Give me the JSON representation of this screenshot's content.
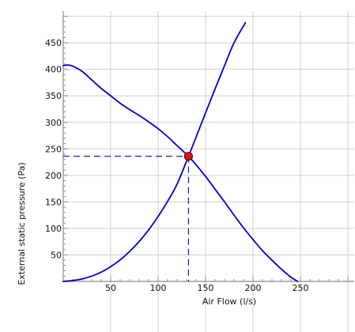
{
  "chart_data": {
    "type": "line",
    "title": "",
    "xlabel": "Air Flow (l/s)",
    "ylabel": "External static pressure (Pa)",
    "xlim": [
      0,
      310
    ],
    "ylim": [
      0,
      505
    ],
    "x_ticks": [
      50,
      100,
      150,
      200,
      250
    ],
    "y_ticks": [
      50,
      100,
      150,
      200,
      250,
      300,
      350,
      400,
      450
    ],
    "x_grid": [
      50,
      100,
      150,
      200,
      250,
      300
    ],
    "y_grid": [
      50,
      100,
      150,
      200,
      250,
      300,
      350,
      400,
      450,
      500
    ],
    "grid": true,
    "legend": "none",
    "colors": {
      "curve": "#0000cc",
      "guide": "#0000cc",
      "point_fill": "#dd1111",
      "point_stroke": "#660000"
    },
    "series": [
      {
        "x": [
          0,
          5,
          10,
          20,
          30,
          40,
          50,
          60,
          70,
          80,
          90,
          100,
          110,
          120,
          132,
          140,
          150,
          160,
          170,
          180,
          190,
          200,
          210,
          220,
          230,
          240,
          247
        ],
        "y": [
          407,
          408,
          406,
          396,
          380,
          364,
          350,
          336,
          324,
          313,
          301,
          288,
          273,
          256,
          236,
          220,
          198,
          174,
          150,
          125,
          101,
          79,
          58,
          40,
          23,
          8,
          0
        ]
      },
      {
        "x": [
          0,
          10,
          20,
          30,
          40,
          50,
          60,
          70,
          80,
          90,
          100,
          110,
          120,
          132,
          140,
          150,
          160,
          170,
          180,
          192
        ],
        "y": [
          0,
          1.6,
          4.6,
          10,
          17.5,
          27.8,
          40.7,
          56.5,
          75.3,
          97.2,
          122.4,
          151,
          183.5,
          236,
          272,
          318,
          363,
          407,
          450,
          488
        ]
      }
    ],
    "operating_point": {
      "x": 132,
      "y": 236
    }
  }
}
